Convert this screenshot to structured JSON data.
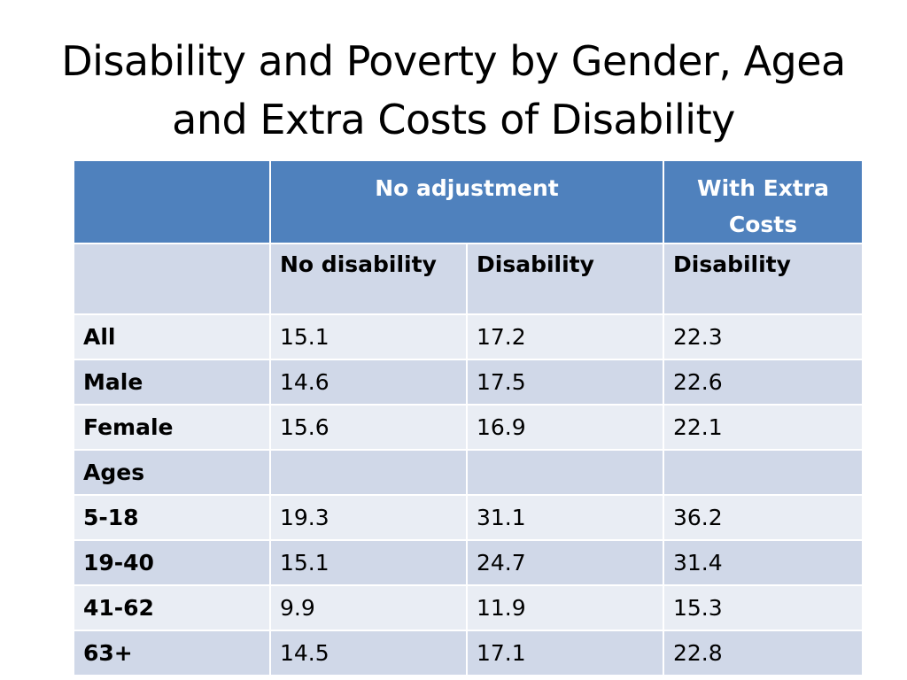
{
  "title": {
    "line1": "Disability and Poverty by Gender, Agea",
    "line2": "and Extra Costs of Disability"
  },
  "table": {
    "group_headers": {
      "empty": "",
      "no_adjustment": "No adjustment",
      "with_extra_costs": "With Extra Costs"
    },
    "sub_headers": {
      "empty": "",
      "no_disability": "No disability",
      "disability": "Disability",
      "extra_disability": "Disability"
    },
    "rows": [
      {
        "label": "All",
        "no_disability": "15.1",
        "disability": "17.2",
        "extra_costs": "22.3"
      },
      {
        "label": "Male",
        "no_disability": "14.6",
        "disability": "17.5",
        "extra_costs": "22.6"
      },
      {
        "label": "Female",
        "no_disability": "15.6",
        "disability": "16.9",
        "extra_costs": "22.1"
      },
      {
        "label": "Ages",
        "no_disability": "",
        "disability": "",
        "extra_costs": ""
      },
      {
        "label": "5-18",
        "no_disability": "19.3",
        "disability": "31.1",
        "extra_costs": "36.2"
      },
      {
        "label": "19-40",
        "no_disability": "15.1",
        "disability": "24.7",
        "extra_costs": "31.4"
      },
      {
        "label": "41-62",
        "no_disability": "9.9",
        "disability": "11.9",
        "extra_costs": "15.3"
      },
      {
        "label": "63+",
        "no_disability": "14.5",
        "disability": "17.1",
        "extra_costs": "22.8"
      }
    ]
  },
  "colors": {
    "header_bg": "#4f81bd",
    "band_dark": "#d0d8e8",
    "band_light": "#e9edf4"
  }
}
